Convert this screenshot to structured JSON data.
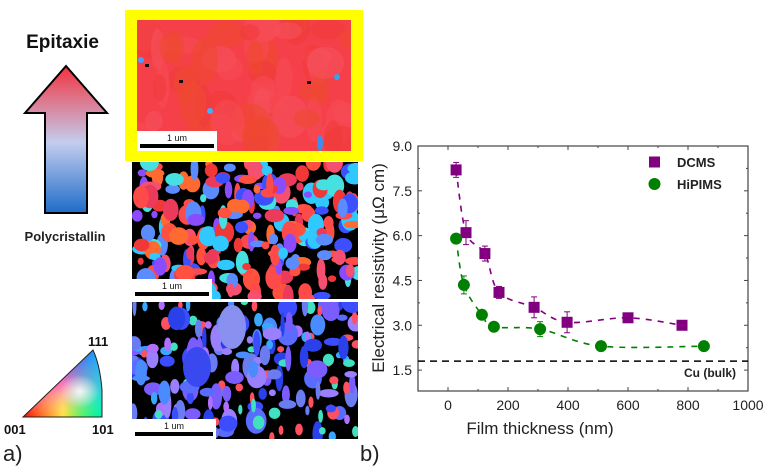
{
  "panel_a": {
    "label": "a)",
    "arrow_top_label": "Epitaxie",
    "arrow_bottom_label": "Polycristallin",
    "arrow_colors": {
      "top": "#f2323f",
      "middle": "#c3cdee",
      "bottom": "#1e6cc8"
    },
    "ipf_triangle": {
      "vertex_001": "001",
      "vertex_101": "101",
      "vertex_111": "111"
    },
    "maps": [
      {
        "name": "epitaxial-map",
        "scale_label": "1 um",
        "highlight_color": "#ffff00",
        "dominant_color": "#f5404a"
      },
      {
        "name": "mixed-map",
        "scale_label": "1 um"
      },
      {
        "name": "polycrystalline-map",
        "scale_label": "1 um"
      }
    ]
  },
  "panel_b": {
    "label": "b)"
  },
  "chart_data": {
    "type": "scatter",
    "title": "",
    "xlabel": "Film thickness (nm)",
    "ylabel": "Electrical resistivity (μΩ cm)",
    "xlim": [
      -100,
      1000
    ],
    "ylim": [
      0.8,
      9.0
    ],
    "xticks": [
      0,
      200,
      400,
      600,
      800,
      1000
    ],
    "yticks": [
      1.5,
      3.0,
      4.5,
      6.0,
      7.5,
      9.0
    ],
    "ytick_labels": [
      "1.5",
      "3.0",
      "4.5",
      "6.0",
      "7.5",
      "9.0"
    ],
    "grid": false,
    "legend": {
      "position": "top-right",
      "entries": [
        "DCMS",
        "HiPIMS"
      ]
    },
    "series": [
      {
        "name": "DCMS",
        "marker": "square",
        "color": "#800080",
        "x": [
          27,
          60,
          123,
          170,
          287,
          397,
          600,
          780
        ],
        "y": [
          8.2,
          6.1,
          5.4,
          4.1,
          3.6,
          3.1,
          3.25,
          3.0
        ],
        "err": [
          0.25,
          0.4,
          0.25,
          0.2,
          0.35,
          0.35,
          0.12,
          0.08
        ],
        "fit_line": "dashed"
      },
      {
        "name": "HiPIMS",
        "marker": "circle",
        "color": "#008000",
        "x": [
          27,
          53,
          113,
          153,
          307,
          510,
          853
        ],
        "y": [
          5.9,
          4.35,
          3.35,
          2.95,
          2.87,
          2.3,
          2.3
        ],
        "err": [
          0.15,
          0.3,
          0.15,
          0.15,
          0.25,
          0.08,
          0.08
        ],
        "fit_line": "dashed"
      }
    ],
    "reference_lines": [
      {
        "label": "Cu (bulk)",
        "y": 1.8,
        "style": "dashed",
        "color": "#000000"
      }
    ]
  }
}
